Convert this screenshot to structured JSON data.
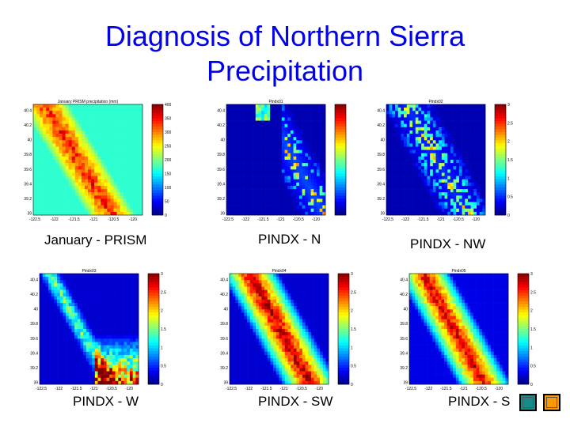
{
  "slide": {
    "title_line1": "Diagnosis of Northern Sierra",
    "title_line2": "Precipitation",
    "title_color": "#0000ee"
  },
  "colormap": "jet",
  "nav_buttons": [
    {
      "name": "nav-prev-button",
      "color": "#178a8a"
    },
    {
      "name": "nav-next-button",
      "color": "#ff9900"
    }
  ],
  "chart_data": [
    {
      "type": "heatmap",
      "caption": "January - PRISM",
      "title": "January PRISM precipitation (mm)",
      "xticks": [
        "-122.5",
        "-122",
        "-121.5",
        "-121",
        "-120.5",
        "-120"
      ],
      "yticks": [
        "40.4",
        "40.2",
        "40",
        "39.8",
        "39.6",
        "39.4",
        "39.2",
        "39"
      ],
      "cbar_ticks": [
        "400",
        "350",
        "300",
        "250",
        "200",
        "150",
        "100",
        "50",
        "0"
      ],
      "xlim": [
        -122.5,
        -119.7
      ],
      "ylim": [
        39.0,
        40.5
      ],
      "clim": [
        0,
        400
      ],
      "pattern": "band",
      "bg": 0.42,
      "peak": 0.85,
      "band_center_x": 0.38,
      "band_width": 0.22
    },
    {
      "type": "heatmap",
      "caption": "PINDX - N",
      "title": "Pindx01",
      "xticks": [
        "-122.5",
        "-122",
        "-121.5",
        "-121",
        "-120.5",
        "-120"
      ],
      "yticks": [
        "40.4",
        "40.2",
        "40",
        "39.8",
        "39.6",
        "39.4",
        "39.2",
        "39"
      ],
      "cbar_ticks": [
        "",
        "",
        "",
        "",
        "",
        "",
        "",
        "",
        ""
      ],
      "xlim": [
        -122.5,
        -119.7
      ],
      "ylim": [
        39.0,
        40.5
      ],
      "clim": [
        0,
        1
      ],
      "pattern": "sparse-east",
      "bg": 0.05,
      "peak": 0.75
    },
    {
      "type": "heatmap",
      "caption": "PINDX - NW",
      "title": "Pindx02",
      "xticks": [
        "-122.5",
        "-122",
        "-121.5",
        "-121",
        "-120.5",
        "-120"
      ],
      "yticks": [
        "40.4",
        "40.2",
        "40",
        "39.8",
        "39.6",
        "39.4",
        "39.2",
        "39"
      ],
      "cbar_ticks": [
        "3",
        "2.5",
        "2",
        "1.5",
        "1",
        "0.5",
        "0"
      ],
      "xlim": [
        -122.5,
        -119.7
      ],
      "ylim": [
        39.0,
        40.5
      ],
      "clim": [
        0,
        3
      ],
      "pattern": "sparse-band",
      "bg": 0.05,
      "peak": 0.55
    },
    {
      "type": "heatmap",
      "caption": "PINDX - W",
      "title": "Pindx03",
      "xticks": [
        "-122.5",
        "-122",
        "-121.5",
        "-121",
        "-120.5",
        "-120"
      ],
      "yticks": [
        "40.4",
        "40.2",
        "40",
        "39.8",
        "39.6",
        "39.4",
        "39.2",
        "39"
      ],
      "cbar_ticks": [
        "3",
        "2.5",
        "2",
        "1.5",
        "1",
        "0.5",
        "0"
      ],
      "xlim": [
        -122.5,
        -119.7
      ],
      "ylim": [
        39.0,
        40.5
      ],
      "clim": [
        0,
        3
      ],
      "pattern": "west-edge",
      "bg": 0.08,
      "peak": 0.9
    },
    {
      "type": "heatmap",
      "caption": "PINDX - SW",
      "title": "Pindx04",
      "xticks": [
        "-122.5",
        "-122",
        "-121.5",
        "-121",
        "-120.5",
        "-120"
      ],
      "yticks": [
        "40.4",
        "40.2",
        "40",
        "39.8",
        "39.6",
        "39.4",
        "39.2",
        "39"
      ],
      "cbar_ticks": [
        "3",
        "2.5",
        "2",
        "1.5",
        "1",
        "0.5",
        "0"
      ],
      "xlim": [
        -122.5,
        -119.7
      ],
      "ylim": [
        39.0,
        40.5
      ],
      "clim": [
        0,
        3
      ],
      "pattern": "band",
      "bg": 0.08,
      "peak": 0.95,
      "band_center_x": 0.48,
      "band_width": 0.3
    },
    {
      "type": "heatmap",
      "caption": "PINDX - S",
      "title": "Pindx05",
      "xticks": [
        "-122.5",
        "-122",
        "-121.5",
        "-121",
        "-120.5",
        "-120"
      ],
      "yticks": [
        "40.4",
        "40.2",
        "40",
        "39.8",
        "39.6",
        "39.4",
        "39.2",
        "39"
      ],
      "cbar_ticks": [
        "3",
        "2.5",
        "2",
        "1.5",
        "1",
        "0.5",
        "0"
      ],
      "xlim": [
        -122.5,
        -119.7
      ],
      "ylim": [
        39.0,
        40.5
      ],
      "clim": [
        0,
        3
      ],
      "pattern": "band",
      "bg": 0.1,
      "peak": 0.92,
      "band_center_x": 0.42,
      "band_width": 0.28
    }
  ]
}
